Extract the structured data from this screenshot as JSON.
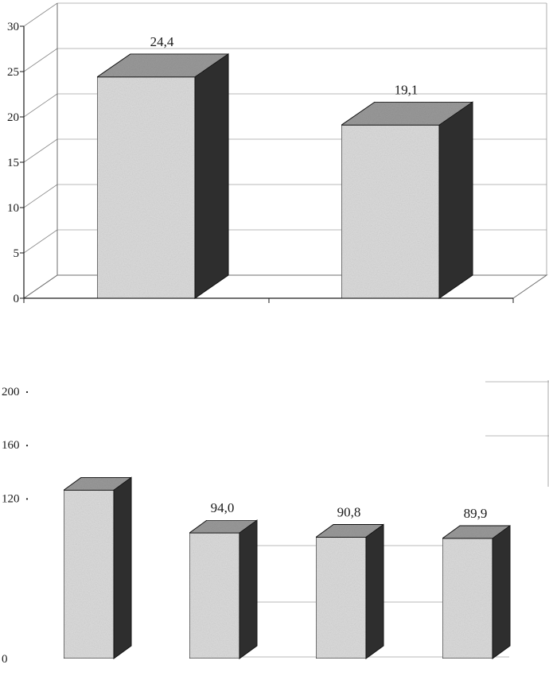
{
  "chart_data": [
    {
      "type": "bar",
      "categories": [
        "",
        ""
      ],
      "values": [
        24.4,
        19.1
      ],
      "value_labels": [
        "24,4",
        "19,1"
      ],
      "ylim": [
        0,
        30
      ],
      "yticks": [
        "0",
        "5",
        "10",
        "15",
        "20",
        "25",
        "30"
      ],
      "grid": true,
      "style": "3d",
      "colors": {
        "front": "#dcdcdc",
        "top": "#9a9a9a",
        "side": "#2e2e2e"
      }
    },
    {
      "type": "bar",
      "categories": [
        "",
        "",
        "",
        ""
      ],
      "values": [
        126,
        94.0,
        90.8,
        89.9
      ],
      "value_labels": [
        "",
        "94,0",
        "90,8",
        "89,9"
      ],
      "ylim": [
        0,
        200
      ],
      "yticks": [
        "0",
        "120",
        "160",
        "200"
      ],
      "grid": true,
      "style": "3d",
      "colors": {
        "front": "#dcdcdc",
        "top": "#9a9a9a",
        "side": "#2e2e2e"
      }
    }
  ]
}
